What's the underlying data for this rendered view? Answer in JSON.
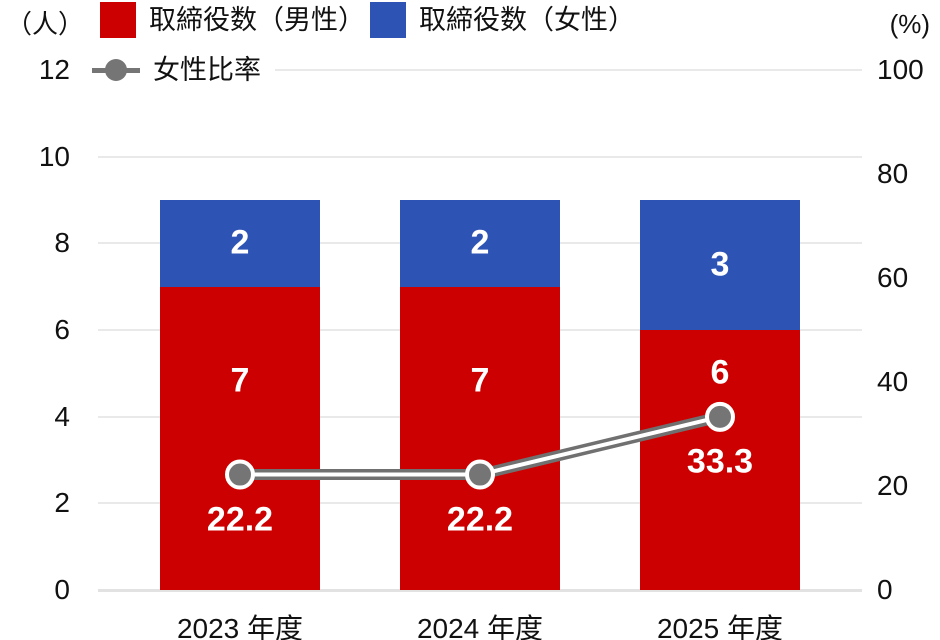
{
  "chart_data": {
    "type": "combo-stacked-bar-line",
    "title": "",
    "categories": [
      "2023 年度",
      "2024 年度",
      "2025 年度"
    ],
    "series": [
      {
        "name": "取締役数（男性）",
        "type": "bar",
        "stack": "directors",
        "axis": "left",
        "color": "#cc0000",
        "values": [
          7,
          7,
          6
        ]
      },
      {
        "name": "取締役数（女性）",
        "type": "bar",
        "stack": "directors",
        "axis": "left",
        "color": "#2d53b5",
        "values": [
          2,
          2,
          3
        ]
      },
      {
        "name": "女性比率",
        "type": "line",
        "axis": "right",
        "color": "#757575",
        "line_color": "#707070",
        "values": [
          22.2,
          22.2,
          33.3
        ]
      }
    ],
    "left_axis": {
      "unit": "（人）",
      "range": [
        0,
        12
      ],
      "ticks": [
        0,
        2,
        4,
        6,
        8,
        10,
        12
      ]
    },
    "right_axis": {
      "unit": "(%)",
      "range": [
        0,
        100
      ],
      "ticks": [
        0,
        20,
        40,
        60,
        80,
        100
      ]
    },
    "grid": true,
    "legend_position": "top",
    "value_labels_shown": true
  }
}
